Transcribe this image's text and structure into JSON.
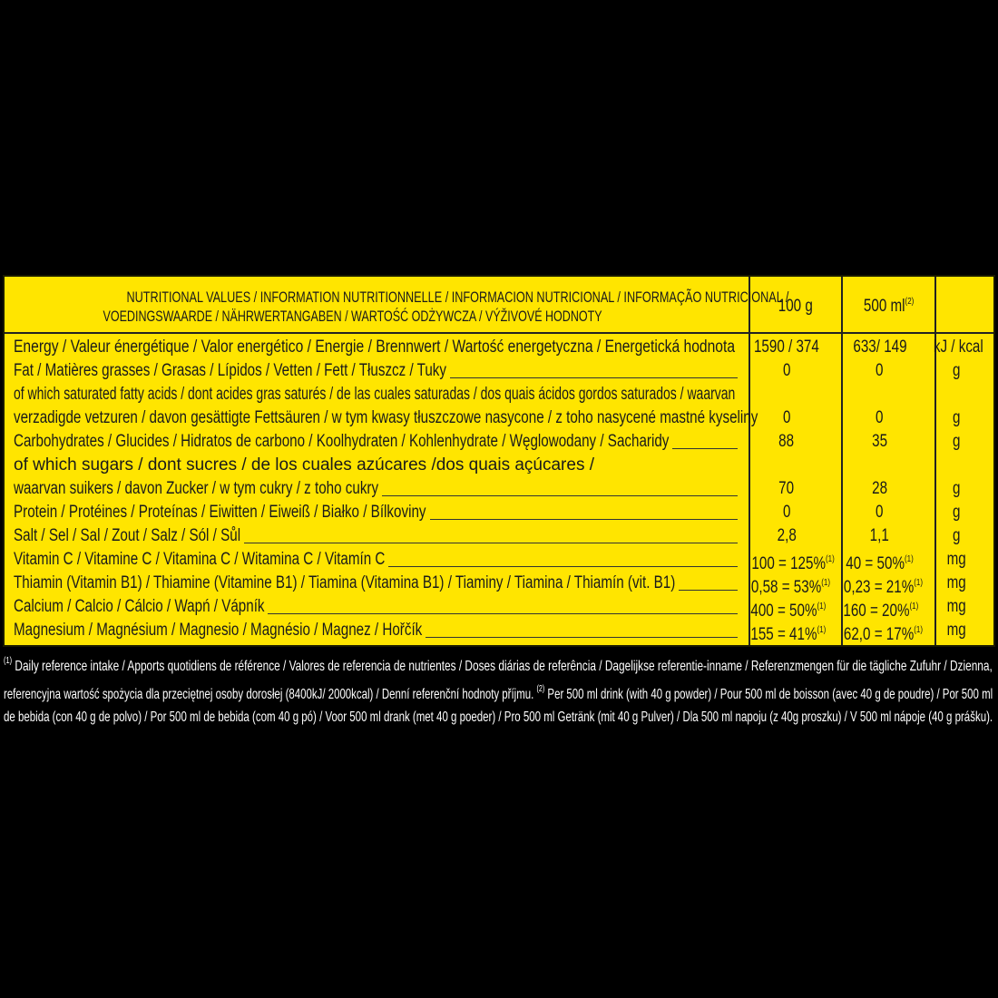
{
  "header": {
    "title_line1": "NUTRITIONAL VALUES / INFORMATION NUTRITIONNELLE / INFORMACION NUTRICIONAL / INFORMAÇÃO NUTRICIONAL /",
    "title_line2": "VOEDINGSWAARDE / NÄHRWERTANGABEN / WARTOŚĆ ODŻYWCZA / VÝŽIVOVÉ HODNOTY",
    "col_100g": "100 g",
    "col_500ml": "500 ml",
    "col_500ml_sup": "(2)"
  },
  "rows": [
    {
      "label": "Energy / Valeur énergétique / Valor energético / Energie / Brennwert / Wartość energetyczna / Energetická hodnota",
      "leader": false,
      "v100": "1590 / 374",
      "v500": "633/ 149",
      "unit": "kJ / kcal"
    },
    {
      "label": "Fat / Matières grasses / Grasas / Lípidos / Vetten / Fett / Tłuszcz / Tuky",
      "leader": true,
      "v100": "0",
      "v500": "0",
      "unit": "g"
    },
    {
      "label": "of which saturated fatty acids / dont acides gras saturés / de las cuales saturadas / dos quais ácidos gordos saturados / waarvan",
      "leader": false
    },
    {
      "label": "verzadigde vetzuren / davon gesättigte Fettsäuren / w tym kwasy tłuszczowe nasycone / z toho nasycené mastné kyseliny",
      "leader": true,
      "v100": "0",
      "v500": "0",
      "unit": "g"
    },
    {
      "label": "Carbohydrates / Glucides / Hidratos de carbono / Koolhydraten / Kohlenhydrate / Węglowodany / Sacharidy",
      "leader": true,
      "v100": "88",
      "v500": "35",
      "unit": "g"
    },
    {
      "label": "of which sugars / dont sucres / de los cuales azúcares /dos quais açúcares /",
      "leader": false
    },
    {
      "label": "waarvan suikers / davon Zucker  / w tym cukry / z toho cukry",
      "leader": true,
      "v100": "70",
      "v500": "28",
      "unit": "g"
    },
    {
      "label": "Protein / Protéines / Proteínas / Eiwitten / Eiweiß / Białko / Bílkoviny",
      "leader": true,
      "v100": "0",
      "v500": "0",
      "unit": "g"
    },
    {
      "label": "Salt / Sel / Sal / Zout / Salz / Sól / Sůl",
      "leader": true,
      "v100": "2,8",
      "v500": "1,1",
      "unit": "g"
    },
    {
      "label": "Vitamin C / Vitamine C / Vitamina C / Witamina C / Vitamín C",
      "leader": true,
      "v100": "100 = 125%",
      "v100_sup": "(1)",
      "v500": "40 = 50%",
      "v500_sup": "(1)",
      "unit": "mg"
    },
    {
      "label": "Thiamin (Vitamin B1) / Thiamine (Vitamine B1) / Tiamina (Vitamina B1) / Tiaminy / Tiamina / Thiamín (vit. B1)",
      "leader": true,
      "v100": "0,58 = 53%",
      "v100_sup": "(1)",
      "v500": "0,23 = 21%",
      "v500_sup": "(1)",
      "unit": "mg"
    },
    {
      "label": "Calcium / Calcio / Cálcio / Wapń / Vápník",
      "leader": true,
      "v100": "400 = 50%",
      "v100_sup": "(1)",
      "v500": "160 = 20%",
      "v500_sup": "(1)",
      "unit": "mg"
    },
    {
      "label": "Magnesium / Magnésium / Magnesio / Magnésio / Magnez / Hořčík",
      "leader": true,
      "v100": "155 = 41%",
      "v100_sup": "(1)",
      "v500": "62,0 = 17%",
      "v500_sup": "(1)",
      "unit": "mg"
    }
  ],
  "footnote": {
    "line1_sup": "(1)",
    "line1": " Daily reference intake / Apports quotidiens de référence / Valores de referencia de nutrientes / Doses diárias de referência / Dagelijkse referentie-inname / Referenzmengen für die tägliche Zufuhr / Dzienna,",
    "line2a": "referencyjna wartość spożycia dla przeciętnej osoby dorosłej (8400kJ/ 2000kcal) / Denní referenční hodnoty příjmu. ",
    "line2_sup": "(2)",
    "line2b": " Per 500 ml drink (with 40 g powder) / Pour 500 ml de boisson (avec 40 g de poudre) / Por 500 ml",
    "line3": "de bebida (con 40 g de polvo) / Por 500 ml de bebida (com 40 g pó) / Voor 500 ml drank (met 40 g poeder) / Pro 500 ml Getränk (mit 40 g Pulver) / Dla 500 ml napoju (z 40g proszku) / V 500 ml nápoje (40 g prášku)."
  },
  "colors": {
    "background": "#000000",
    "label": "#ffe500",
    "text": "#1a1a1a",
    "footnote": "#ffffff"
  }
}
